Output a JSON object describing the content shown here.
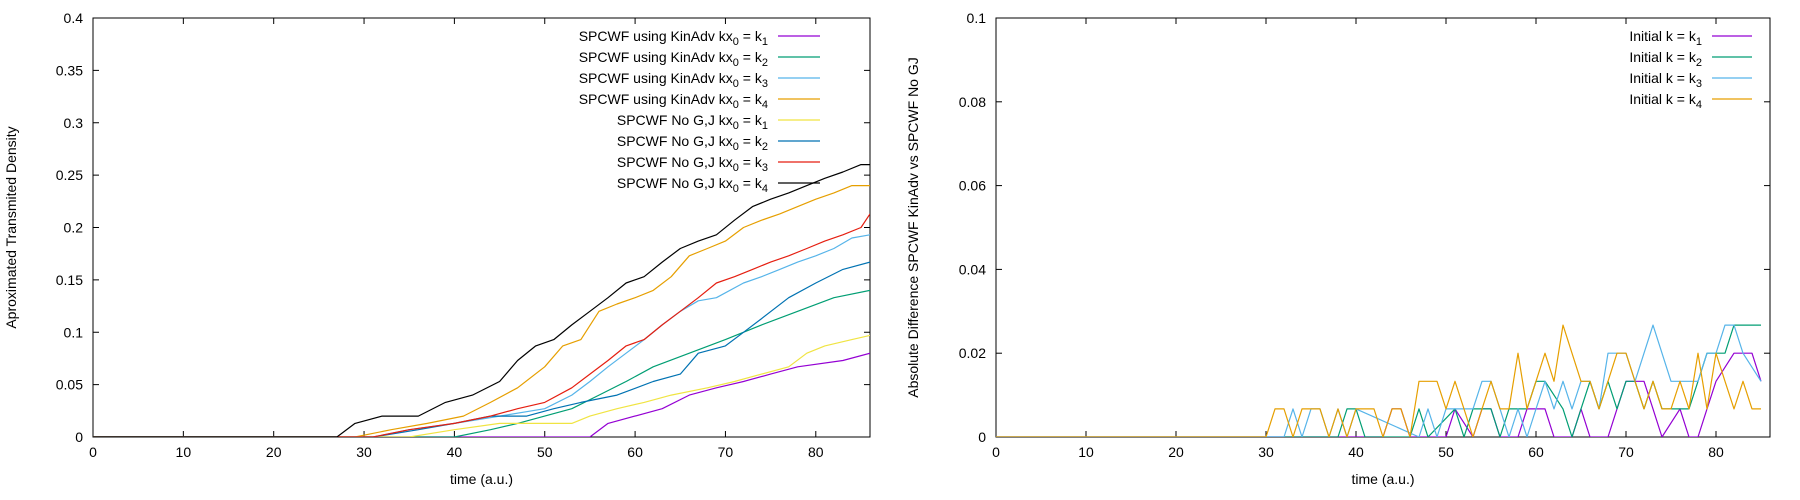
{
  "chart_data": [
    {
      "type": "line",
      "xlabel": "time (a.u.)",
      "ylabel": "Aproximated Transmited Density",
      "xlim": [
        0,
        86
      ],
      "ylim": [
        0,
        0.4
      ],
      "xticks": [
        0,
        10,
        20,
        30,
        40,
        50,
        60,
        70,
        80
      ],
      "yticks": [
        0,
        0.05,
        0.1,
        0.15,
        0.2,
        0.25,
        0.3,
        0.35,
        0.4
      ],
      "xtick_labels": [
        "0",
        "10",
        "20",
        "30",
        "40",
        "50",
        "60",
        "70",
        "80"
      ],
      "ytick_labels": [
        "0",
        "0.05",
        "0.1",
        "0.15",
        "0.2",
        "0.25",
        "0.3",
        "0.35",
        "0.4"
      ],
      "legend_position": "top-right",
      "series": [
        {
          "name": "SPCWF using KinAdv kx0 = k1",
          "label_main": "SPCWF using KinAdv kx",
          "sub0": "0",
          "label_mid": " = k",
          "sub1": "1",
          "color": "#9400d3",
          "x": [
            0,
            55,
            57,
            63,
            66,
            69,
            72,
            75,
            78,
            83,
            86
          ],
          "y": [
            0,
            0,
            0.013,
            0.027,
            0.04,
            0.047,
            0.053,
            0.06,
            0.067,
            0.073,
            0.08
          ]
        },
        {
          "name": "SPCWF using KinAdv kx0 = k2",
          "label_main": "SPCWF using KinAdv kx",
          "sub0": "0",
          "label_mid": " = k",
          "sub1": "2",
          "color": "#009e73",
          "x": [
            0,
            40,
            44,
            47,
            50,
            53,
            56,
            59,
            62,
            66,
            70,
            74,
            78,
            82,
            86
          ],
          "y": [
            0,
            0,
            0.007,
            0.013,
            0.02,
            0.027,
            0.04,
            0.053,
            0.067,
            0.08,
            0.093,
            0.107,
            0.12,
            0.133,
            0.14
          ]
        },
        {
          "name": "SPCWF using KinAdv kx0 = k3",
          "label_main": "SPCWF using KinAdv kx",
          "sub0": "0",
          "label_mid": " = k",
          "sub1": "3",
          "color": "#56b4e9",
          "x": [
            0,
            31,
            35,
            40,
            45,
            50,
            53,
            55,
            57,
            59,
            61,
            63,
            65,
            67,
            69,
            72,
            74,
            76,
            78,
            80,
            82,
            84,
            86
          ],
          "y": [
            0,
            0,
            0.007,
            0.013,
            0.02,
            0.027,
            0.04,
            0.053,
            0.067,
            0.08,
            0.093,
            0.107,
            0.12,
            0.13,
            0.133,
            0.147,
            0.153,
            0.16,
            0.167,
            0.173,
            0.18,
            0.19,
            0.193
          ]
        },
        {
          "name": "SPCWF using KinAdv kx0 = k4",
          "label_main": "SPCWF using KinAdv kx",
          "sub0": "0",
          "label_mid": " = k",
          "sub1": "4",
          "color": "#e69f00",
          "x": [
            0,
            29,
            33,
            37,
            41,
            44,
            47,
            50,
            52,
            54,
            56,
            58,
            60,
            62,
            64,
            66,
            68,
            70,
            72,
            74,
            76,
            78,
            80,
            82,
            84,
            86
          ],
          "y": [
            0,
            0,
            0.007,
            0.013,
            0.02,
            0.033,
            0.047,
            0.067,
            0.087,
            0.093,
            0.12,
            0.127,
            0.133,
            0.14,
            0.153,
            0.173,
            0.18,
            0.187,
            0.2,
            0.207,
            0.213,
            0.22,
            0.227,
            0.233,
            0.24,
            0.24
          ]
        },
        {
          "name": "SPCWF No G,J kx0 = k1",
          "label_main": "SPCWF No G,J kx",
          "sub0": "0",
          "label_mid": " = k",
          "sub1": "1",
          "color": "#f0e442",
          "x": [
            0,
            35,
            40,
            45,
            50,
            53,
            55,
            58,
            61,
            64,
            68,
            71,
            74,
            77,
            79,
            81,
            84,
            86
          ],
          "y": [
            0,
            0,
            0.007,
            0.013,
            0.013,
            0.013,
            0.02,
            0.027,
            0.033,
            0.04,
            0.047,
            0.053,
            0.06,
            0.067,
            0.08,
            0.087,
            0.093,
            0.097
          ]
        },
        {
          "name": "SPCWF No G,J kx0 = k2",
          "label_main": "SPCWF No G,J kx",
          "sub0": "0",
          "label_mid": " = k",
          "sub1": "2",
          "color": "#0072b2",
          "x": [
            0,
            31,
            36,
            40,
            44,
            48,
            51,
            54,
            58,
            62,
            65,
            67,
            70,
            72,
            74,
            77,
            80,
            83,
            86
          ],
          "y": [
            0,
            0,
            0.007,
            0.013,
            0.02,
            0.02,
            0.027,
            0.033,
            0.04,
            0.053,
            0.06,
            0.08,
            0.087,
            0.1,
            0.113,
            0.133,
            0.147,
            0.16,
            0.167
          ]
        },
        {
          "name": "SPCWF No G,J kx0 = k3",
          "label_main": "SPCWF No G,J kx",
          "sub0": "0",
          "label_mid": " = k",
          "sub1": "3",
          "color": "#e51e10",
          "x": [
            0,
            31,
            35,
            40,
            44,
            47,
            50,
            53,
            55,
            57,
            59,
            61,
            63,
            65,
            67,
            69,
            71,
            73,
            75,
            77,
            79,
            81,
            83,
            85,
            86
          ],
          "y": [
            0,
            0,
            0.007,
            0.013,
            0.02,
            0.027,
            0.033,
            0.047,
            0.06,
            0.073,
            0.087,
            0.093,
            0.107,
            0.12,
            0.133,
            0.147,
            0.153,
            0.16,
            0.167,
            0.173,
            0.18,
            0.187,
            0.193,
            0.2,
            0.213
          ]
        },
        {
          "name": "SPCWF No G,J kx0 = k4",
          "label_main": "SPCWF No G,J kx",
          "sub0": "0",
          "label_mid": " = k",
          "sub1": "4",
          "color": "#000000",
          "x": [
            0,
            27,
            29,
            32,
            36,
            39,
            42,
            45,
            47,
            49,
            51,
            53,
            55,
            57,
            59,
            61,
            63,
            65,
            67,
            69,
            71,
            73,
            75,
            77,
            79,
            81,
            83,
            85,
            86
          ],
          "y": [
            0,
            0,
            0.013,
            0.02,
            0.02,
            0.033,
            0.04,
            0.053,
            0.073,
            0.087,
            0.093,
            0.107,
            0.12,
            0.133,
            0.147,
            0.153,
            0.167,
            0.18,
            0.187,
            0.193,
            0.207,
            0.22,
            0.227,
            0.233,
            0.24,
            0.247,
            0.253,
            0.26,
            0.26
          ]
        }
      ]
    },
    {
      "type": "line",
      "xlabel": "time (a.u.)",
      "ylabel": "Absolute Difference SPCWF KinAdv vs SPCWF No GJ",
      "xlim": [
        0,
        86
      ],
      "ylim": [
        0,
        0.1
      ],
      "xticks": [
        0,
        10,
        20,
        30,
        40,
        50,
        60,
        70,
        80
      ],
      "yticks": [
        0,
        0.02,
        0.04,
        0.06,
        0.08,
        0.1
      ],
      "xtick_labels": [
        "0",
        "10",
        "20",
        "30",
        "40",
        "50",
        "60",
        "70",
        "80"
      ],
      "ytick_labels": [
        "0",
        "0.02",
        "0.04",
        "0.06",
        "0.08",
        "0.1"
      ],
      "legend_position": "top-right",
      "series": [
        {
          "name": "Initial k = k1",
          "label_main": "Initial k = k",
          "sub0": "",
          "label_mid": "",
          "sub1": "1",
          "color": "#9400d3",
          "x": [
            0,
            43,
            44,
            45,
            46,
            50,
            51,
            53,
            54,
            55,
            56,
            58,
            59,
            61,
            62,
            64,
            65,
            66,
            68,
            69,
            70,
            72,
            73,
            74,
            76,
            77,
            78,
            79,
            80,
            82,
            84,
            85
          ],
          "y": [
            0,
            0,
            0.0067,
            0.0067,
            0,
            0,
            0.0067,
            0,
            0.0067,
            0.0067,
            0,
            0,
            0.0067,
            0.0067,
            0,
            0,
            0.0067,
            0,
            0,
            0.0067,
            0.0133,
            0.0133,
            0.0067,
            0,
            0.0067,
            0,
            0,
            0.0067,
            0.0133,
            0.02,
            0.02,
            0.0133
          ]
        },
        {
          "name": "Initial k = k2",
          "label_main": "Initial k = k",
          "sub0": "",
          "label_mid": "",
          "sub1": "2",
          "color": "#009e73",
          "x": [
            0,
            38,
            39,
            40,
            41,
            46,
            47,
            48,
            51,
            52,
            53,
            55,
            56,
            57,
            59,
            60,
            61,
            63,
            64,
            65,
            66,
            67,
            68,
            69,
            70,
            71,
            72,
            73,
            74,
            75,
            76,
            77,
            78,
            79,
            80,
            81,
            82,
            83,
            85
          ],
          "y": [
            0,
            0,
            0.0067,
            0.0067,
            0,
            0,
            0.0067,
            0,
            0.0067,
            0,
            0.0067,
            0.0067,
            0,
            0.0067,
            0.0067,
            0.0133,
            0.0133,
            0.0067,
            0,
            0.0067,
            0.0133,
            0.0067,
            0.0133,
            0.0067,
            0.0133,
            0.0133,
            0.0067,
            0.0133,
            0.0067,
            0.0067,
            0.0067,
            0.0067,
            0.0133,
            0.02,
            0.02,
            0.02,
            0.0267,
            0.0267,
            0.0267
          ]
        },
        {
          "name": "Initial k = k3",
          "label_main": "Initial k = k",
          "sub0": "",
          "label_mid": "",
          "sub1": "3",
          "color": "#56b4e9",
          "x": [
            0,
            32,
            33,
            34,
            35,
            36,
            37,
            38,
            39,
            40,
            47,
            48,
            49,
            50,
            53,
            54,
            55,
            56,
            57,
            58,
            59,
            60,
            61,
            62,
            63,
            64,
            65,
            66,
            67,
            68,
            69,
            70,
            71,
            72,
            73,
            74,
            75,
            76,
            77,
            78,
            79,
            80,
            81,
            82,
            83,
            85
          ],
          "y": [
            0,
            0,
            0.0067,
            0,
            0.0067,
            0.0067,
            0,
            0.0067,
            0,
            0.0067,
            0,
            0.0067,
            0,
            0.0067,
            0.0067,
            0.0133,
            0.0133,
            0.0067,
            0,
            0.0067,
            0,
            0.0067,
            0.0133,
            0.0067,
            0.0133,
            0.0067,
            0.0133,
            0.0133,
            0.0067,
            0.02,
            0.02,
            0.02,
            0.0133,
            0.02,
            0.0267,
            0.02,
            0.0133,
            0.0133,
            0.0133,
            0.0133,
            0.02,
            0.02,
            0.0267,
            0.0267,
            0.02,
            0.0133
          ]
        },
        {
          "name": "Initial k = k4",
          "label_main": "Initial k = k",
          "sub0": "",
          "label_mid": "",
          "sub1": "4",
          "color": "#e69f00",
          "x": [
            0,
            30,
            31,
            32,
            33,
            34,
            35,
            36,
            37,
            38,
            39,
            40,
            41,
            42,
            43,
            44,
            45,
            46,
            47,
            48,
            49,
            50,
            51,
            52,
            53,
            54,
            55,
            56,
            57,
            58,
            59,
            60,
            61,
            62,
            63,
            64,
            65,
            66,
            67,
            68,
            69,
            70,
            71,
            72,
            73,
            74,
            75,
            76,
            77,
            78,
            79,
            80,
            81,
            82,
            83,
            84,
            85
          ],
          "y": [
            0,
            0,
            0.0067,
            0.0067,
            0,
            0.0067,
            0.0067,
            0.0067,
            0,
            0.0067,
            0,
            0.0067,
            0.0067,
            0.0067,
            0,
            0.0067,
            0.0067,
            0,
            0.0133,
            0.0133,
            0.0133,
            0.0067,
            0.0133,
            0.0067,
            0,
            0.0067,
            0.0133,
            0.0067,
            0.0067,
            0.02,
            0.0067,
            0.0133,
            0.02,
            0.0133,
            0.0267,
            0.02,
            0.0133,
            0.0133,
            0.0067,
            0.0133,
            0.02,
            0.02,
            0.0133,
            0.0067,
            0.0133,
            0.0067,
            0.0067,
            0.0133,
            0.0067,
            0.02,
            0.0067,
            0.02,
            0.0133,
            0.0067,
            0.0133,
            0.0067,
            0.0067
          ]
        }
      ]
    }
  ]
}
